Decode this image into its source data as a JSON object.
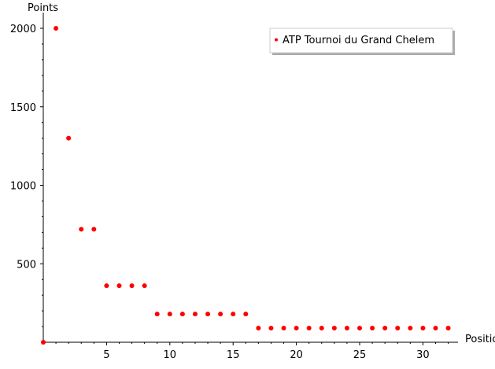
{
  "chart_data": {
    "type": "scatter",
    "xlabel": "Position",
    "ylabel": "Points",
    "xlim": [
      0,
      32.5
    ],
    "ylim": [
      0,
      2000
    ],
    "xticks": [
      5,
      10,
      15,
      20,
      25,
      30
    ],
    "yticks": [
      500,
      1000,
      1500,
      2000
    ],
    "grid": false,
    "legend_position": "top-right",
    "colors": {
      "series": "#ff0000",
      "axes": "#000000",
      "legend_shadow": "#aaaaaa"
    },
    "series": [
      {
        "name": "ATP Tournoi du Grand Chelem",
        "points": [
          [
            0,
            0
          ],
          [
            1,
            2000
          ],
          [
            2,
            1300
          ],
          [
            3,
            720
          ],
          [
            4,
            720
          ],
          [
            5,
            360
          ],
          [
            6,
            360
          ],
          [
            7,
            360
          ],
          [
            8,
            360
          ],
          [
            9,
            180
          ],
          [
            10,
            180
          ],
          [
            11,
            180
          ],
          [
            12,
            180
          ],
          [
            13,
            180
          ],
          [
            14,
            180
          ],
          [
            15,
            180
          ],
          [
            16,
            180
          ],
          [
            17,
            90
          ],
          [
            18,
            90
          ],
          [
            19,
            90
          ],
          [
            20,
            90
          ],
          [
            21,
            90
          ],
          [
            22,
            90
          ],
          [
            23,
            90
          ],
          [
            24,
            90
          ],
          [
            25,
            90
          ],
          [
            26,
            90
          ],
          [
            27,
            90
          ],
          [
            28,
            90
          ],
          [
            29,
            90
          ],
          [
            30,
            90
          ],
          [
            31,
            90
          ],
          [
            32,
            90
          ]
        ]
      }
    ]
  }
}
